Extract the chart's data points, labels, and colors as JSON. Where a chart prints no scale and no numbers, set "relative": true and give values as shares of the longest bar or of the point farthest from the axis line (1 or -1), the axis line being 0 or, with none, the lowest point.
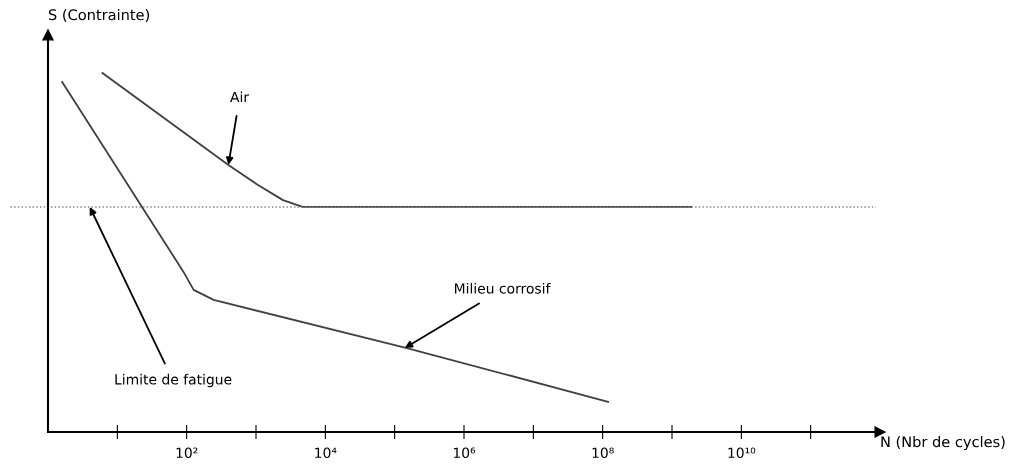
{
  "chart_data": {
    "type": "line",
    "relative": true,
    "xlabel": "N (Nbr de cycles)",
    "ylabel": "S (Contrainte)",
    "log": "x",
    "xlim": [
      1,
      1000000000000
    ],
    "xticks": [
      {
        "value": 10,
        "label": null
      },
      {
        "value": 100,
        "label": "10²"
      },
      {
        "value": 1000,
        "label": null
      },
      {
        "value": 10000,
        "label": "10⁴"
      },
      {
        "value": 100000,
        "label": null
      },
      {
        "value": 1000000,
        "label": "10⁶"
      },
      {
        "value": 10000000,
        "label": null
      },
      {
        "value": 100000000,
        "label": "10⁸"
      },
      {
        "value": 1000000000,
        "label": null
      },
      {
        "value": 10000000000,
        "label": "10¹⁰"
      },
      {
        "value": 100000000000,
        "label": null
      }
    ],
    "series": [
      {
        "color": "#404040",
        "x": [
          6.1,
          400,
          1070,
          2450,
          4700,
          1900000000
        ],
        "values": [
          1.0,
          0.744,
          0.688,
          0.646,
          0.627,
          0.627
        ]
      },
      {
        "color": "#404040",
        "x": [
          1.6,
          90,
          126,
          245,
          150000,
          120000000
        ],
        "values": [
          0.975,
          0.446,
          0.396,
          0.368,
          0.234,
          0.084
        ]
      }
    ],
    "ref_lines": [
      {
        "axis": "y",
        "value": 0.627,
        "color": "#808080",
        "line_style": "dotted"
      }
    ],
    "annotations": [
      {
        "text": "Air",
        "x": 400,
        "y": 0.744
      },
      {
        "text": "Milieu corrosif",
        "x": 140000,
        "y": 0.234
      },
      {
        "text": "Limite de fatigue",
        "x": 4,
        "y": 0.627
      }
    ]
  }
}
